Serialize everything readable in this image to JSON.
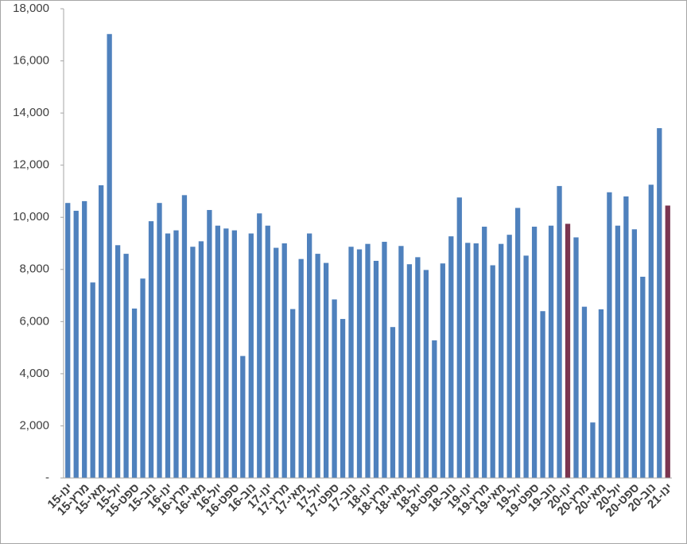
{
  "chart_data": {
    "type": "bar",
    "categories": [
      "ינו-15",
      null,
      "מרץ-15",
      null,
      "מאי-15",
      null,
      "יול-15",
      null,
      "ספט-15",
      null,
      "נוב-15",
      null,
      "ינו-16",
      null,
      "מרץ-16",
      null,
      "מאי-16",
      null,
      "יול-16",
      null,
      "ספט-16",
      null,
      "נוב-16",
      null,
      "ינו-17",
      null,
      "מרץ-17",
      null,
      "מאי-17",
      null,
      "יול-17",
      null,
      "ספט-17",
      null,
      "נוב-17",
      null,
      "ינו-18",
      null,
      "מרץ-18",
      null,
      "מאי-18",
      null,
      "יול-18",
      null,
      "ספט-18",
      null,
      "נוב-18",
      null,
      "ינו-19",
      null,
      "מרץ-19",
      null,
      "מאי-19",
      null,
      "יול-19",
      null,
      "ספט-19",
      null,
      "נוב-19",
      null,
      "ינו-20",
      null,
      "מרץ-20",
      null,
      "מאי-20",
      null,
      "יול-20",
      null,
      "ספט-20",
      null,
      "נוב-20",
      null,
      "ינו-21"
    ],
    "values": [
      10550,
      10250,
      10620,
      7500,
      11230,
      17030,
      8930,
      8600,
      6500,
      7650,
      9850,
      10550,
      9380,
      9500,
      10850,
      8870,
      9080,
      10280,
      9680,
      9570,
      9500,
      4680,
      9380,
      10150,
      9680,
      8830,
      9000,
      6480,
      8400,
      9380,
      8600,
      8250,
      6850,
      6100,
      8870,
      8770,
      8980,
      8330,
      9060,
      5790,
      8900,
      8200,
      8470,
      7980,
      5280,
      8230,
      9270,
      10760,
      9020,
      9000,
      9640,
      8160,
      8980,
      9330,
      10360,
      8530,
      9640,
      6400,
      9680,
      11200,
      9750,
      9230,
      6570,
      2130,
      6470,
      10960,
      9680,
      10800,
      9540,
      7720,
      11250,
      13420,
      10450
    ],
    "colors": [
      "#4f81bd",
      "#4f81bd",
      "#4f81bd",
      "#4f81bd",
      "#4f81bd",
      "#4f81bd",
      "#4f81bd",
      "#4f81bd",
      "#4f81bd",
      "#4f81bd",
      "#4f81bd",
      "#4f81bd",
      "#4f81bd",
      "#4f81bd",
      "#4f81bd",
      "#4f81bd",
      "#4f81bd",
      "#4f81bd",
      "#4f81bd",
      "#4f81bd",
      "#4f81bd",
      "#4f81bd",
      "#4f81bd",
      "#4f81bd",
      "#4f81bd",
      "#4f81bd",
      "#4f81bd",
      "#4f81bd",
      "#4f81bd",
      "#4f81bd",
      "#4f81bd",
      "#4f81bd",
      "#4f81bd",
      "#4f81bd",
      "#4f81bd",
      "#4f81bd",
      "#4f81bd",
      "#4f81bd",
      "#4f81bd",
      "#4f81bd",
      "#4f81bd",
      "#4f81bd",
      "#4f81bd",
      "#4f81bd",
      "#4f81bd",
      "#4f81bd",
      "#4f81bd",
      "#4f81bd",
      "#4f81bd",
      "#4f81bd",
      "#4f81bd",
      "#4f81bd",
      "#4f81bd",
      "#4f81bd",
      "#4f81bd",
      "#4f81bd",
      "#4f81bd",
      "#4f81bd",
      "#4f81bd",
      "#4f81bd",
      "#7a3550",
      "#4f81bd",
      "#4f81bd",
      "#4f81bd",
      "#4f81bd",
      "#4f81bd",
      "#4f81bd",
      "#4f81bd",
      "#4f81bd",
      "#4f81bd",
      "#4f81bd",
      "#4f81bd",
      "#7a3550"
    ],
    "ylim": [
      0,
      18000
    ],
    "yticks": [
      {
        "value": 0,
        "label": "-"
      },
      {
        "value": 2000,
        "label": "2,000"
      },
      {
        "value": 4000,
        "label": "4,000"
      },
      {
        "value": 6000,
        "label": "6,000"
      },
      {
        "value": 8000,
        "label": "8,000"
      },
      {
        "value": 10000,
        "label": "10,000"
      },
      {
        "value": 12000,
        "label": "12,000"
      },
      {
        "value": 14000,
        "label": "14,000"
      },
      {
        "value": 16000,
        "label": "16,000"
      },
      {
        "value": 18000,
        "label": "18,000"
      }
    ],
    "grid": false
  }
}
